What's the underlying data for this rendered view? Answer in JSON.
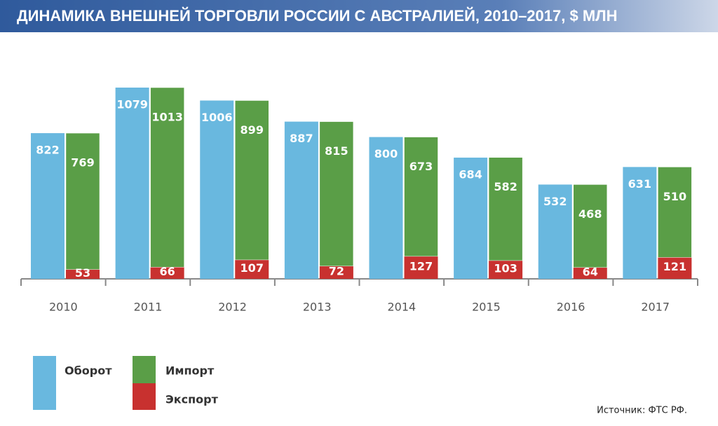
{
  "chart_data": {
    "type": "grouped-stacked-bar",
    "title": "ДИНАМИКА ВНЕШНЕЙ ТОРГОВЛИ РОССИИ С АВСТРАЛИЕЙ, 2010–2017, $ МЛН",
    "categories": [
      "2010",
      "2011",
      "2012",
      "2013",
      "2014",
      "2015",
      "2016",
      "2017"
    ],
    "series": [
      {
        "name": "Оборот",
        "color": "#69b8df",
        "values": [
          822,
          1079,
          1006,
          887,
          800,
          684,
          532,
          631
        ]
      },
      {
        "name": "Импорт",
        "color": "#5a9e47",
        "values": [
          769,
          1013,
          899,
          815,
          673,
          582,
          468,
          510
        ]
      },
      {
        "name": "Экспорт",
        "color": "#c8312f",
        "values": [
          53,
          66,
          107,
          72,
          127,
          103,
          64,
          121
        ]
      }
    ],
    "source": "Источник: ФТС РФ."
  }
}
